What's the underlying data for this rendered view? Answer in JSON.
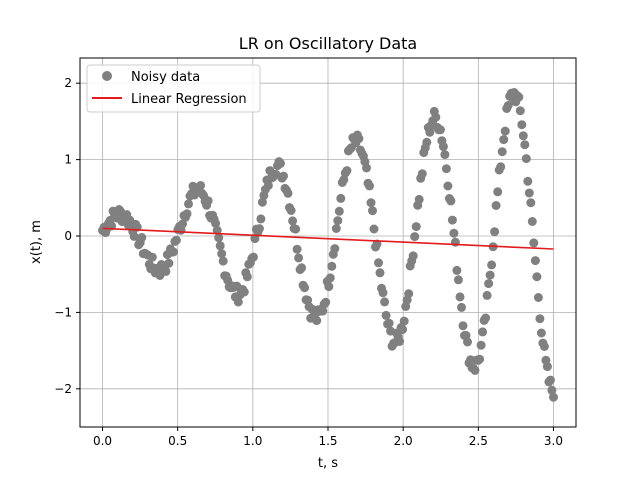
{
  "chart_data": {
    "type": "scatter",
    "title": "LR on Oscillatory Data",
    "xlabel": "t, s",
    "ylabel": "x(t), m",
    "xlim": [
      -0.15,
      3.15
    ],
    "ylim": [
      -2.5,
      2.33
    ],
    "xticks": [
      0.0,
      0.5,
      1.0,
      1.5,
      2.0,
      2.5,
      3.0
    ],
    "xtick_labels": [
      "0.0",
      "0.5",
      "1.0",
      "1.5",
      "2.0",
      "2.5",
      "3.0"
    ],
    "yticks": [
      -2,
      -1,
      0,
      1,
      2
    ],
    "ytick_labels": [
      "−2",
      "−1",
      "0",
      "1",
      "2"
    ],
    "grid": true,
    "legend": {
      "position": "top-left",
      "entries": [
        "Noisy data",
        "Linear Regression"
      ]
    },
    "series": [
      {
        "name": "Noisy data",
        "kind": "scatter",
        "color": "#808080",
        "model": {
          "description": "oscillating samples, increasing amplitude",
          "n_points": 300,
          "t_start": 0.0,
          "t_end": 3.0
        }
      },
      {
        "name": "Linear Regression",
        "kind": "line",
        "color": "#e41a1c",
        "x": [
          0.0,
          3.0
        ],
        "y": [
          0.1,
          -0.17
        ]
      }
    ]
  }
}
